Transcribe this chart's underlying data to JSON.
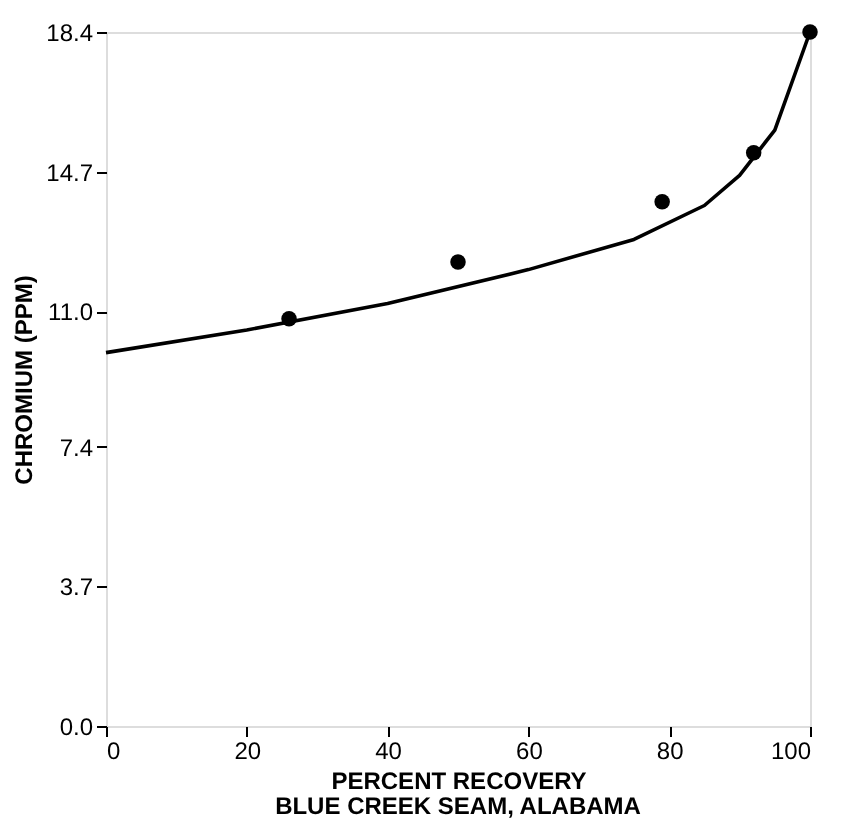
{
  "chart_data": {
    "type": "scatter",
    "title": "BLUE CREEK SEAM, ALABAMA",
    "xlabel": "PERCENT RECOVERY",
    "ylabel": "CHROMIUM (PPM)",
    "series": [
      {
        "color": "#000000",
        "marker": "circle",
        "x": [
          26,
          50,
          79,
          92,
          100
        ],
        "values": [
          10.8,
          12.3,
          13.9,
          15.2,
          18.4
        ]
      },
      {
        "type": "line",
        "color": "#000000",
        "line_style": "solid",
        "x": [
          0,
          20,
          40,
          60,
          75,
          85,
          90,
          95,
          100
        ],
        "values": [
          9.9,
          10.5,
          11.2,
          12.1,
          12.9,
          13.8,
          14.6,
          15.8,
          18.4
        ]
      }
    ],
    "xlim": [
      0,
      100
    ],
    "xticks": [
      0,
      20,
      40,
      60,
      80,
      100
    ],
    "ylim": [
      0,
      18.4
    ],
    "yticks": [
      {
        "value": 0,
        "label": "0.0"
      },
      3.7,
      7.4,
      {
        "value": 11,
        "label": "11.0"
      },
      14.7,
      18.4
    ],
    "grid": false
  }
}
